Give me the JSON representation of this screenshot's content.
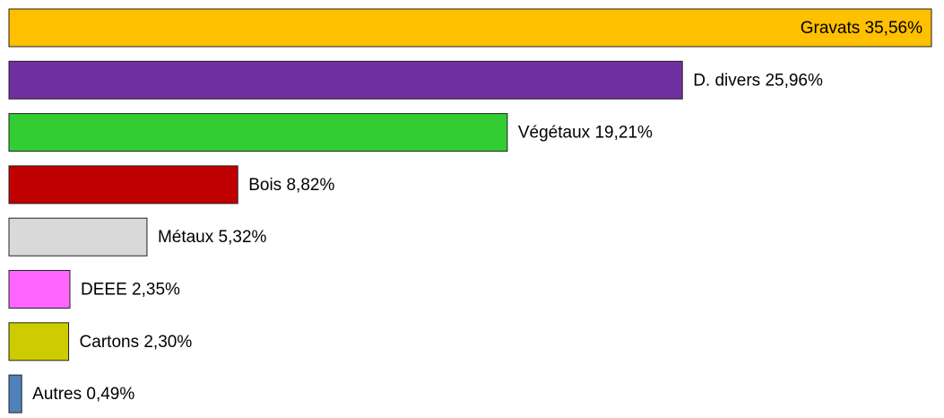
{
  "chart_data": {
    "type": "hbar",
    "categories": [
      "Gravats",
      "D. divers",
      "Végétaux",
      "Bois",
      "Métaux",
      "DEEE",
      "Cartons",
      "Autres"
    ],
    "values": [
      35.56,
      25.96,
      19.21,
      8.82,
      5.32,
      2.35,
      2.3,
      0.49
    ],
    "value_labels": [
      "35,56%",
      "25,96%",
      "19,21%",
      "8,82%",
      "5,32%",
      "2,35%",
      "2,30%",
      "0,49%"
    ],
    "colors": [
      "#ffc000",
      "#7030a0",
      "#33cc33",
      "#c00000",
      "#d9d9d9",
      "#ff66ff",
      "#cccc00",
      "#4f81bd"
    ]
  }
}
